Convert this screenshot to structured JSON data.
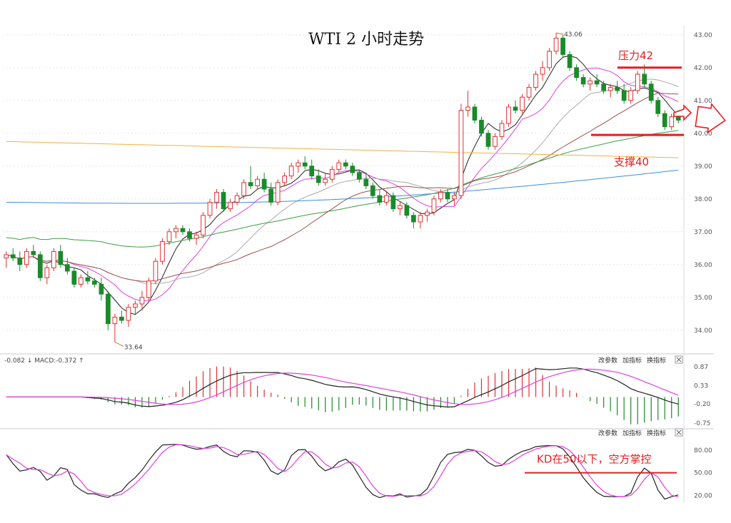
{
  "chart_data": {
    "type": "candlestick",
    "title": "WTI 2 小时走势",
    "price_axis": {
      "min": 33.3,
      "max": 43.3,
      "ticks": [
        "43.00",
        "42.00",
        "41.00",
        "40.00",
        "39.00",
        "38.00",
        "37.00",
        "36.00",
        "35.00",
        "34.00"
      ]
    },
    "candles": [
      [
        36.2,
        36.4,
        35.9,
        36.3
      ],
      [
        36.3,
        36.5,
        36.1,
        36.2
      ],
      [
        36.2,
        36.4,
        35.8,
        36.0
      ],
      [
        36.0,
        36.5,
        35.9,
        36.4
      ],
      [
        36.4,
        36.6,
        36.2,
        36.3
      ],
      [
        36.3,
        36.4,
        35.5,
        35.6
      ],
      [
        35.6,
        36.0,
        35.4,
        35.9
      ],
      [
        35.9,
        36.5,
        35.8,
        36.4
      ],
      [
        36.4,
        36.6,
        35.9,
        36.0
      ],
      [
        36.0,
        36.2,
        35.7,
        35.8
      ],
      [
        35.8,
        35.9,
        35.3,
        35.4
      ],
      [
        35.4,
        35.7,
        35.3,
        35.6
      ],
      [
        35.6,
        35.8,
        35.4,
        35.5
      ],
      [
        35.5,
        35.6,
        35.3,
        35.4
      ],
      [
        35.4,
        35.6,
        34.9,
        35.1
      ],
      [
        35.1,
        35.2,
        34.0,
        34.2
      ],
      [
        34.2,
        34.5,
        33.64,
        34.4
      ],
      [
        34.4,
        34.6,
        34.2,
        34.3
      ],
      [
        34.3,
        34.8,
        34.1,
        34.7
      ],
      [
        34.7,
        34.9,
        34.5,
        34.8
      ],
      [
        34.8,
        35.2,
        34.6,
        35.0
      ],
      [
        35.0,
        35.6,
        34.9,
        35.5
      ],
      [
        35.5,
        36.2,
        35.4,
        36.1
      ],
      [
        36.1,
        36.8,
        36.0,
        36.7
      ],
      [
        36.7,
        37.1,
        36.6,
        37.0
      ],
      [
        37.0,
        37.2,
        36.8,
        37.1
      ],
      [
        37.1,
        37.2,
        36.9,
        37.0
      ],
      [
        37.0,
        37.1,
        36.7,
        36.8
      ],
      [
        36.8,
        37.0,
        36.6,
        36.9
      ],
      [
        36.9,
        37.6,
        36.8,
        37.5
      ],
      [
        37.5,
        38.0,
        37.4,
        37.9
      ],
      [
        37.9,
        38.3,
        37.7,
        38.2
      ],
      [
        38.2,
        38.3,
        37.6,
        37.7
      ],
      [
        37.7,
        38.0,
        37.6,
        37.9
      ],
      [
        37.9,
        38.2,
        37.8,
        38.1
      ],
      [
        38.1,
        38.6,
        38.0,
        38.5
      ],
      [
        38.5,
        39.0,
        38.3,
        38.4
      ],
      [
        38.4,
        38.7,
        38.3,
        38.6
      ],
      [
        38.6,
        38.8,
        38.2,
        38.3
      ],
      [
        38.3,
        38.5,
        37.8,
        37.9
      ],
      [
        37.9,
        38.6,
        37.8,
        38.5
      ],
      [
        38.5,
        38.8,
        38.4,
        38.7
      ],
      [
        38.7,
        39.1,
        38.6,
        39.0
      ],
      [
        39.0,
        39.2,
        38.8,
        39.1
      ],
      [
        39.1,
        39.3,
        38.9,
        39.0
      ],
      [
        39.0,
        39.2,
        38.6,
        38.7
      ],
      [
        38.7,
        38.9,
        38.4,
        38.5
      ],
      [
        38.5,
        38.8,
        38.4,
        38.6
      ],
      [
        38.6,
        39.0,
        38.5,
        38.9
      ],
      [
        38.9,
        39.2,
        38.8,
        39.1
      ],
      [
        39.1,
        39.2,
        38.9,
        39.0
      ],
      [
        39.0,
        39.1,
        38.7,
        38.8
      ],
      [
        38.8,
        38.9,
        38.5,
        38.6
      ],
      [
        38.6,
        38.8,
        38.3,
        38.4
      ],
      [
        38.4,
        38.5,
        38.0,
        38.1
      ],
      [
        38.1,
        38.3,
        37.8,
        37.9
      ],
      [
        37.9,
        38.2,
        37.8,
        38.1
      ],
      [
        38.1,
        38.2,
        37.6,
        37.7
      ],
      [
        37.7,
        37.9,
        37.5,
        37.8
      ],
      [
        37.8,
        37.9,
        37.4,
        37.5
      ],
      [
        37.5,
        37.6,
        37.1,
        37.3
      ],
      [
        37.3,
        37.6,
        37.1,
        37.5
      ],
      [
        37.5,
        37.7,
        37.3,
        37.6
      ],
      [
        37.6,
        38.1,
        37.5,
        38.0
      ],
      [
        38.0,
        38.3,
        37.9,
        38.2
      ],
      [
        38.2,
        38.3,
        37.9,
        38.0
      ],
      [
        38.0,
        38.2,
        37.8,
        38.1
      ],
      [
        38.1,
        40.9,
        38.0,
        40.7
      ],
      [
        40.7,
        41.3,
        40.5,
        40.8
      ],
      [
        40.8,
        40.9,
        40.3,
        40.4
      ],
      [
        40.4,
        40.5,
        39.9,
        40.0
      ],
      [
        40.0,
        40.1,
        39.5,
        39.6
      ],
      [
        39.6,
        40.0,
        39.5,
        39.9
      ],
      [
        39.9,
        40.4,
        39.8,
        40.3
      ],
      [
        40.3,
        40.9,
        40.2,
        40.8
      ],
      [
        40.8,
        41.0,
        40.6,
        40.7
      ],
      [
        40.7,
        41.2,
        40.6,
        41.1
      ],
      [
        41.1,
        41.5,
        41.0,
        41.4
      ],
      [
        41.4,
        41.9,
        41.3,
        41.8
      ],
      [
        41.8,
        42.2,
        41.6,
        42.0
      ],
      [
        42.0,
        42.6,
        41.9,
        42.5
      ],
      [
        42.5,
        43.06,
        42.4,
        42.9
      ],
      [
        42.9,
        43.0,
        42.3,
        42.4
      ],
      [
        42.4,
        42.5,
        41.9,
        42.0
      ],
      [
        42.0,
        42.1,
        41.6,
        41.7
      ],
      [
        41.7,
        41.8,
        41.4,
        41.5
      ],
      [
        41.5,
        41.7,
        41.3,
        41.6
      ],
      [
        41.6,
        41.8,
        41.4,
        41.5
      ],
      [
        41.5,
        41.6,
        41.2,
        41.3
      ],
      [
        41.3,
        41.5,
        41.1,
        41.4
      ],
      [
        41.4,
        41.6,
        41.2,
        41.3
      ],
      [
        41.3,
        41.5,
        40.9,
        41.0
      ],
      [
        41.0,
        41.4,
        40.9,
        41.3
      ],
      [
        41.3,
        41.9,
        41.2,
        41.8
      ],
      [
        41.8,
        42.1,
        41.4,
        41.5
      ],
      [
        41.5,
        41.6,
        40.9,
        41.0
      ],
      [
        41.0,
        41.1,
        40.5,
        40.6
      ],
      [
        40.6,
        40.7,
        40.1,
        40.2
      ],
      [
        40.2,
        40.6,
        40.1,
        40.5
      ],
      [
        40.5,
        40.7,
        40.3,
        40.4
      ]
    ],
    "annotations": {
      "low": "33.64",
      "high": "43.06",
      "resistance": "压力42",
      "support": "支撑40",
      "kd_note": "KD在50以下，空方掌控"
    },
    "levels": {
      "resistance": 42.0,
      "support": 39.95,
      "kd": 50
    },
    "macd": {
      "label_prefix": "-0.082 ↓ MACD:-0.372 ↑",
      "ticks": [
        "0.87",
        "0.33",
        "-0.20",
        "-0.75"
      ],
      "range": [
        -0.85,
        0.95
      ]
    },
    "kd": {
      "ticks": [
        "80.00",
        "50.00",
        "20.00"
      ],
      "range": [
        10,
        95
      ]
    },
    "buttons": [
      "改参数",
      "加指标",
      "换指标"
    ]
  },
  "colors": {
    "up": "#e03030",
    "down": "#1a8a2a",
    "ma5": "#222222",
    "ma10": "#e040e0",
    "ma20": "#aaaaaa",
    "ma30": "#a05050",
    "ma60": "#3aa040",
    "ma120": "#3b8fe0",
    "ma250": "#f5b040",
    "annotation": "#e02020"
  }
}
